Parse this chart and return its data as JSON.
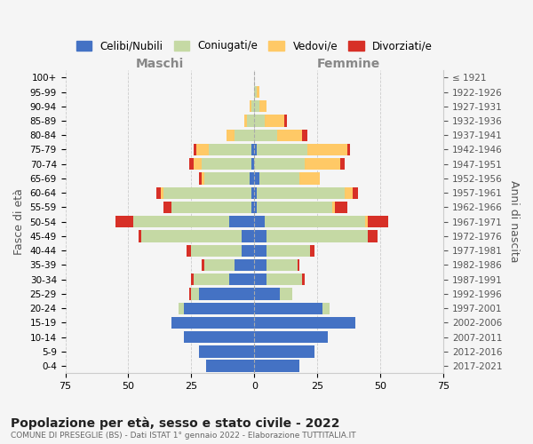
{
  "age_groups": [
    "0-4",
    "5-9",
    "10-14",
    "15-19",
    "20-24",
    "25-29",
    "30-34",
    "35-39",
    "40-44",
    "45-49",
    "50-54",
    "55-59",
    "60-64",
    "65-69",
    "70-74",
    "75-79",
    "80-84",
    "85-89",
    "90-94",
    "95-99",
    "100+"
  ],
  "birth_years": [
    "2017-2021",
    "2012-2016",
    "2007-2011",
    "2002-2006",
    "1997-2001",
    "1992-1996",
    "1987-1991",
    "1982-1986",
    "1977-1981",
    "1972-1976",
    "1967-1971",
    "1962-1966",
    "1957-1961",
    "1952-1956",
    "1947-1951",
    "1942-1946",
    "1937-1941",
    "1932-1936",
    "1927-1931",
    "1922-1926",
    "≤ 1921"
  ],
  "male": {
    "celibi": [
      19,
      22,
      28,
      33,
      28,
      22,
      10,
      8,
      5,
      5,
      10,
      1,
      1,
      2,
      1,
      1,
      0,
      0,
      0,
      0,
      0
    ],
    "coniugati": [
      0,
      0,
      0,
      0,
      2,
      3,
      14,
      12,
      20,
      40,
      38,
      32,
      35,
      18,
      20,
      17,
      8,
      3,
      1,
      0,
      0
    ],
    "vedovi": [
      0,
      0,
      0,
      0,
      0,
      0,
      0,
      0,
      0,
      0,
      0,
      0,
      1,
      1,
      3,
      5,
      3,
      1,
      1,
      0,
      0
    ],
    "divorziati": [
      0,
      0,
      0,
      0,
      0,
      1,
      1,
      1,
      2,
      1,
      7,
      3,
      2,
      1,
      2,
      1,
      0,
      0,
      0,
      0,
      0
    ]
  },
  "female": {
    "nubili": [
      18,
      24,
      29,
      40,
      27,
      10,
      5,
      5,
      5,
      5,
      4,
      1,
      1,
      2,
      0,
      1,
      0,
      0,
      0,
      0,
      0
    ],
    "coniugate": [
      0,
      0,
      0,
      0,
      3,
      5,
      14,
      12,
      17,
      40,
      40,
      30,
      35,
      16,
      20,
      20,
      9,
      4,
      2,
      1,
      0
    ],
    "vedove": [
      0,
      0,
      0,
      0,
      0,
      0,
      0,
      0,
      0,
      0,
      1,
      1,
      3,
      8,
      14,
      16,
      10,
      8,
      3,
      1,
      0
    ],
    "divorziate": [
      0,
      0,
      0,
      0,
      0,
      0,
      1,
      1,
      2,
      4,
      8,
      5,
      2,
      0,
      2,
      1,
      2,
      1,
      0,
      0,
      0
    ]
  },
  "colors": {
    "celibi": "#4472c4",
    "coniugati": "#c5d9a4",
    "vedovi": "#ffc966",
    "divorziati": "#d73027"
  },
  "xlim": 75,
  "title": "Popolazione per età, sesso e stato civile - 2022",
  "subtitle": "COMUNE DI PRESEGLIE (BS) - Dati ISTAT 1° gennaio 2022 - Elaborazione TUTTITALIA.IT",
  "ylabel": "Fasce di età",
  "right_ylabel": "Anni di nascita",
  "legend_labels": [
    "Celibi/Nubili",
    "Coniugati/e",
    "Vedovi/e",
    "Divorziati/e"
  ],
  "maschi_label": "Maschi",
  "femmine_label": "Femmine",
  "background_color": "#f5f5f5"
}
